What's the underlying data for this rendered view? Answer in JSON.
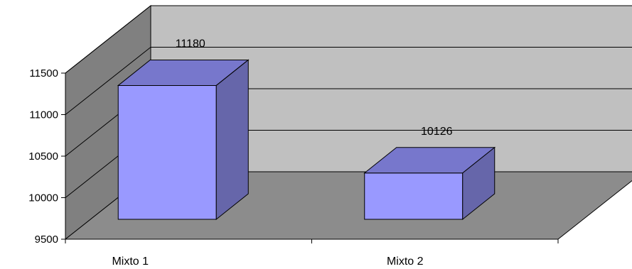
{
  "chart_data": {
    "type": "bar",
    "style": "3d-column",
    "title": "",
    "xlabel": "",
    "ylabel": "",
    "categories": [
      "Mixto 1",
      "Mixto 2"
    ],
    "values": [
      11180,
      10126
    ],
    "data_labels": [
      "11180",
      "10126"
    ],
    "ylim": [
      9500,
      11500
    ],
    "yticks": [
      9500,
      10000,
      10500,
      11000,
      11500
    ],
    "ytick_labels": [
      "9500",
      "10000",
      "10500",
      "11000",
      "11500"
    ],
    "grid": true,
    "legend": "none",
    "colors": {
      "bar_front": "#9999ff",
      "bar_top": "#7777cc",
      "bar_side": "#6666aa",
      "back_wall": "#c0c0c0",
      "side_wall": "#808080",
      "floor": "#8c8c8c"
    }
  }
}
